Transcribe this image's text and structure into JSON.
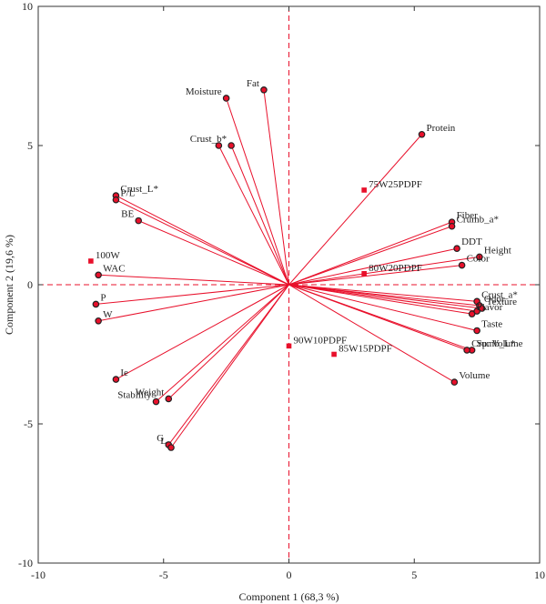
{
  "chart_data": {
    "type": "scatter",
    "subtype": "pca-biplot",
    "xlabel": "Component 1 (68,3 %)",
    "ylabel": "Component 2 (19,6 %)",
    "xlim": [
      -10,
      10
    ],
    "ylim": [
      -10,
      10
    ],
    "xticks": [
      -10,
      -5,
      0,
      5,
      10
    ],
    "yticks": [
      -10,
      -5,
      0,
      5,
      10
    ],
    "xtick_labels": [
      "-10",
      "-5",
      "0",
      "5",
      "10"
    ],
    "ytick_labels": [
      "-10",
      "-5",
      "0",
      "5",
      "10"
    ],
    "grid": false,
    "reference_lines": "dashed lines at x = 0 and y = 0",
    "colors": {
      "vector": "#e8102b",
      "loading_fill": "#e8102b",
      "loading_outline": "#222222",
      "score_marker": "#e8102b",
      "axis": "#333333"
    },
    "loadings": [
      {
        "label": "Fat",
        "x": -1.0,
        "y": 7.0
      },
      {
        "label": "Moisture",
        "x": -2.5,
        "y": 6.7
      },
      {
        "label": "Crust_b*",
        "x": -2.3,
        "y": 5.0
      },
      {
        "label": "",
        "x": -2.8,
        "y": 5.0
      },
      {
        "label": "Protein",
        "x": 5.3,
        "y": 5.4
      },
      {
        "label": "Crust_L*",
        "x": -6.9,
        "y": 3.2
      },
      {
        "label": "P/L",
        "x": -6.9,
        "y": 3.05
      },
      {
        "label": "BE",
        "x": -6.0,
        "y": 2.3
      },
      {
        "label": "WAC",
        "x": -7.6,
        "y": 0.35
      },
      {
        "label": "P",
        "x": -7.7,
        "y": -0.7
      },
      {
        "label": "W",
        "x": -7.6,
        "y": -1.3
      },
      {
        "label": "Ie",
        "x": -6.9,
        "y": -3.4
      },
      {
        "label": "Stability",
        "x": -5.3,
        "y": -4.2
      },
      {
        "label": "Weight",
        "x": -4.8,
        "y": -4.1
      },
      {
        "label": "G",
        "x": -4.8,
        "y": -5.75
      },
      {
        "label": "L",
        "x": -4.7,
        "y": -5.85
      },
      {
        "label": "Fiber",
        "x": 6.5,
        "y": 2.25
      },
      {
        "label": "Crumb_a*",
        "x": 6.5,
        "y": 2.1
      },
      {
        "label": "DDT",
        "x": 6.7,
        "y": 1.3
      },
      {
        "label": "Height",
        "x": 7.6,
        "y": 1.0
      },
      {
        "label": "Color",
        "x": 6.9,
        "y": 0.7
      },
      {
        "label": "Crust_a*",
        "x": 7.5,
        "y": -0.6
      },
      {
        "label": "Odor",
        "x": 7.6,
        "y": -0.75
      },
      {
        "label": "Texture",
        "x": 7.7,
        "y": -0.85
      },
      {
        "label": "Flavor",
        "x": 7.3,
        "y": -1.05
      },
      {
        "label": "",
        "x": 7.5,
        "y": -0.95
      },
      {
        "label": "Taste",
        "x": 7.5,
        "y": -1.65
      },
      {
        "label": "Sp. Volume",
        "x": 7.3,
        "y": -2.35
      },
      {
        "label": "Crumb_L*",
        "x": 7.1,
        "y": -2.35
      },
      {
        "label": "Volume",
        "x": 6.6,
        "y": -3.5
      }
    ],
    "scores": [
      {
        "label": "100W",
        "x": -7.9,
        "y": 0.85
      },
      {
        "label": "75W25PDPF",
        "x": 3.0,
        "y": 3.4
      },
      {
        "label": "80W20PDPF",
        "x": 3.0,
        "y": 0.4
      },
      {
        "label": "85W15PDPF",
        "x": 1.8,
        "y": -2.5
      },
      {
        "label": "90W10PDPF",
        "x": 0.0,
        "y": -2.2
      }
    ]
  }
}
